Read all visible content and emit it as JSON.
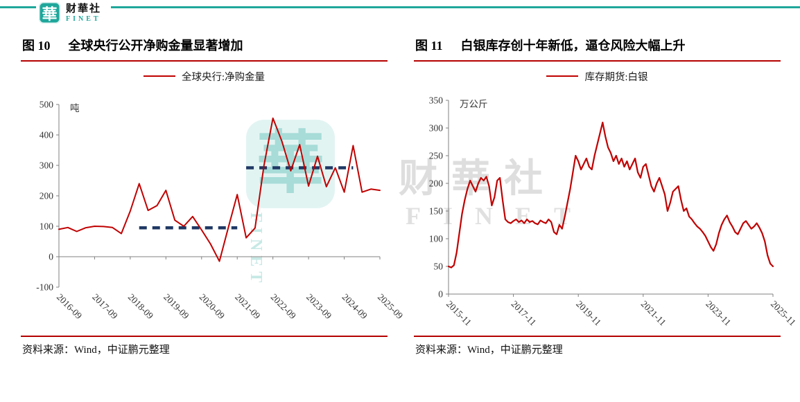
{
  "header": {
    "logo_char": "華",
    "brand_cn": "财華社",
    "brand_en": "FINET",
    "accent_teal": "#1fa79b",
    "rule_red": "#b50000"
  },
  "watermark": {
    "cn": "财華社",
    "en": "FINET"
  },
  "panels": {
    "left": {
      "figure_no": "图 10",
      "title": "全球央行公开净购金量显著增加",
      "legend": "全球央行:净购金量",
      "source": "资料来源：Wind，中证鹏元整理"
    },
    "right": {
      "figure_no": "图 11",
      "title": "白银库存创十年新低，逼仓风险大幅上升",
      "legend": "库存期货:白银",
      "source": "资料来源：Wind，中证鹏元整理"
    }
  },
  "chart_data": [
    {
      "type": "line",
      "title": "全球央行公开净购金量显著增加",
      "ylabel": "吨",
      "ylim": [
        -100,
        500
      ],
      "yticks": [
        -100,
        0,
        100,
        200,
        300,
        400,
        500
      ],
      "axis_at": 0,
      "x_frequency": "quarterly",
      "x_start": "2016-09",
      "x_end": "2025-09",
      "xticks": [
        {
          "i": 0,
          "label": "2016-09"
        },
        {
          "i": 4,
          "label": "2017-09"
        },
        {
          "i": 8,
          "label": "2018-09"
        },
        {
          "i": 12,
          "label": "2019-09"
        },
        {
          "i": 16,
          "label": "2020-09"
        },
        {
          "i": 20,
          "label": "2021-09"
        },
        {
          "i": 24,
          "label": "2022-09"
        },
        {
          "i": 28,
          "label": "2023-09"
        },
        {
          "i": 32,
          "label": "2024-09"
        },
        {
          "i": 36,
          "label": "2025-09"
        }
      ],
      "series": [
        {
          "name": "全球央行:净购金量",
          "color": "#c00000",
          "width": 2,
          "values": [
            90,
            96,
            83,
            95,
            100,
            99,
            96,
            76,
            150,
            240,
            152,
            168,
            218,
            120,
            100,
            132,
            88,
            42,
            -15,
            96,
            204,
            62,
            94,
            300,
            455,
            380,
            282,
            368,
            232,
            330,
            230,
            292,
            212,
            365,
            212,
            222,
            218
          ]
        }
      ],
      "avg_lines": [
        {
          "value": 95,
          "from_index": 9,
          "to_index": 20,
          "color": "#1f3864",
          "style": "dashed"
        },
        {
          "value": 292,
          "from_index": 21,
          "to_index": 33,
          "color": "#1f3864",
          "style": "dashed"
        }
      ],
      "grid": false,
      "legend_position": "top"
    },
    {
      "type": "line",
      "title": "白银库存创十年新低，逼仓风险大幅上升",
      "ylabel": "万公斤",
      "ylim": [
        0,
        350
      ],
      "yticks": [
        0,
        50,
        100,
        150,
        200,
        250,
        300,
        350
      ],
      "axis_at": 0,
      "x_frequency": "monthly",
      "x_start": "2015-11",
      "x_end": "2025-11",
      "xticks": [
        {
          "i": 0,
          "label": "2015-11"
        },
        {
          "i": 24,
          "label": "2017-11"
        },
        {
          "i": 48,
          "label": "2019-11"
        },
        {
          "i": 72,
          "label": "2021-11"
        },
        {
          "i": 96,
          "label": "2023-11"
        },
        {
          "i": 120,
          "label": "2025-11"
        }
      ],
      "series": [
        {
          "name": "库存期货:白银",
          "color": "#c00000",
          "width": 2.2,
          "values": [
            50,
            48,
            52,
            75,
            110,
            145,
            170,
            190,
            205,
            195,
            185,
            200,
            210,
            205,
            212,
            195,
            160,
            175,
            205,
            210,
            170,
            135,
            130,
            128,
            132,
            135,
            130,
            133,
            128,
            135,
            130,
            132,
            128,
            126,
            133,
            130,
            128,
            135,
            130,
            112,
            108,
            125,
            118,
            140,
            165,
            190,
            220,
            250,
            240,
            225,
            235,
            245,
            230,
            225,
            250,
            270,
            290,
            310,
            285,
            265,
            255,
            240,
            250,
            235,
            245,
            230,
            240,
            225,
            235,
            245,
            220,
            210,
            230,
            235,
            215,
            195,
            185,
            200,
            210,
            195,
            180,
            150,
            165,
            185,
            190,
            195,
            170,
            150,
            155,
            140,
            135,
            128,
            122,
            118,
            112,
            105,
            95,
            85,
            78,
            90,
            110,
            125,
            135,
            142,
            130,
            122,
            112,
            108,
            118,
            128,
            132,
            125,
            118,
            122,
            128,
            120,
            110,
            95,
            70,
            55,
            50
          ]
        }
      ],
      "grid": false,
      "legend_position": "top"
    }
  ]
}
